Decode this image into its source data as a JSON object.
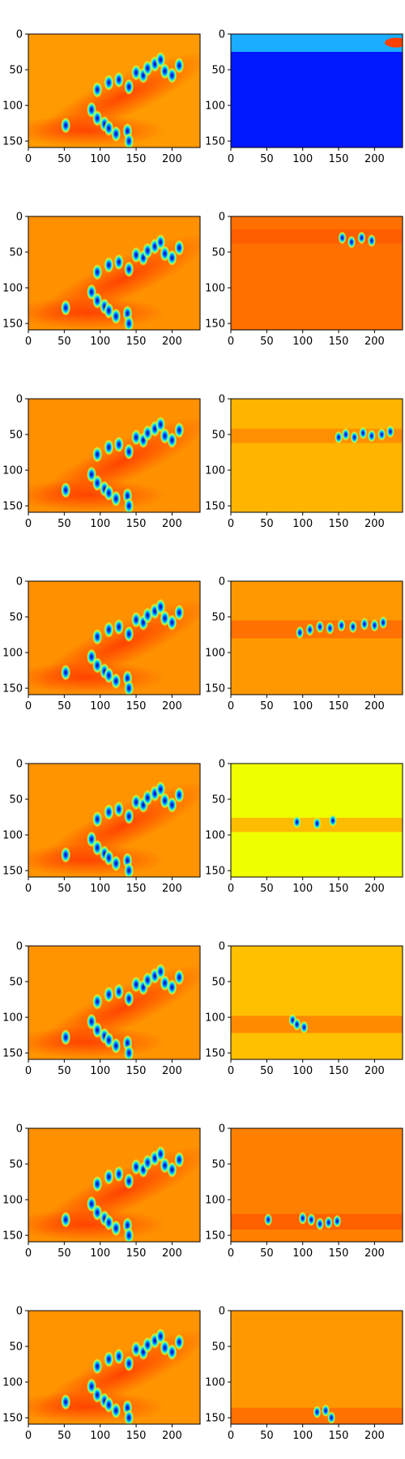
{
  "chart_data": {
    "type": "heatmap",
    "colormap": "jet",
    "layout": {
      "rows": 8,
      "cols": 2
    },
    "x_ticks": [
      0,
      50,
      100,
      150,
      200
    ],
    "y_ticks": [
      0,
      50,
      100,
      150
    ],
    "xlim": [
      0,
      239
    ],
    "ylim": [
      159,
      0
    ],
    "grid": false,
    "legend": "none",
    "left_column_blobs": [
      {
        "x": 52,
        "y": 128
      },
      {
        "x": 88,
        "y": 106
      },
      {
        "x": 96,
        "y": 118
      },
      {
        "x": 106,
        "y": 126
      },
      {
        "x": 112,
        "y": 132
      },
      {
        "x": 122,
        "y": 140
      },
      {
        "x": 138,
        "y": 136
      },
      {
        "x": 140,
        "y": 150
      },
      {
        "x": 96,
        "y": 78
      },
      {
        "x": 112,
        "y": 68
      },
      {
        "x": 126,
        "y": 64
      },
      {
        "x": 140,
        "y": 74
      },
      {
        "x": 150,
        "y": 54
      },
      {
        "x": 160,
        "y": 58
      },
      {
        "x": 166,
        "y": 48
      },
      {
        "x": 176,
        "y": 42
      },
      {
        "x": 184,
        "y": 36
      },
      {
        "x": 190,
        "y": 52
      },
      {
        "x": 200,
        "y": 58
      },
      {
        "x": 210,
        "y": 44
      }
    ],
    "panels": [
      {
        "left": {
          "bg": "#ff9a00"
        },
        "right": {
          "bg": "#0018ff",
          "band": {
            "y0": 0,
            "y1": 25,
            "color": "#20c8ff"
          },
          "hot": [
            {
              "x": 230,
              "y": 12,
              "color": "#ff4000"
            }
          ],
          "blobs": []
        }
      },
      {
        "left": {
          "bg": "#ff9000"
        },
        "right": {
          "bg": "#ff7000",
          "band": {
            "y0": 18,
            "y1": 38,
            "color": "#ff5a00"
          },
          "blobs": [
            {
              "x": 155,
              "y": 30
            },
            {
              "x": 168,
              "y": 36
            },
            {
              "x": 182,
              "y": 30
            },
            {
              "x": 196,
              "y": 34
            }
          ]
        }
      },
      {
        "left": {
          "bg": "#ff9000"
        },
        "right": {
          "bg": "#ffb400",
          "band": {
            "y0": 42,
            "y1": 62,
            "color": "#ff8800"
          },
          "blobs": [
            {
              "x": 150,
              "y": 54
            },
            {
              "x": 160,
              "y": 50
            },
            {
              "x": 172,
              "y": 54
            },
            {
              "x": 184,
              "y": 48
            },
            {
              "x": 196,
              "y": 52
            },
            {
              "x": 210,
              "y": 50
            },
            {
              "x": 222,
              "y": 46
            }
          ]
        }
      },
      {
        "left": {
          "bg": "#ff9000"
        },
        "right": {
          "bg": "#ff9800",
          "band": {
            "y0": 55,
            "y1": 80,
            "color": "#ff6a00"
          },
          "blobs": [
            {
              "x": 96,
              "y": 72
            },
            {
              "x": 110,
              "y": 68
            },
            {
              "x": 124,
              "y": 64
            },
            {
              "x": 138,
              "y": 66
            },
            {
              "x": 154,
              "y": 62
            },
            {
              "x": 170,
              "y": 64
            },
            {
              "x": 186,
              "y": 60
            },
            {
              "x": 200,
              "y": 62
            },
            {
              "x": 212,
              "y": 58
            }
          ]
        }
      },
      {
        "left": {
          "bg": "#ff9400"
        },
        "right": {
          "bg": "#f0ff00",
          "band": {
            "y0": 76,
            "y1": 96,
            "color": "#ffb000"
          },
          "blobs": [
            {
              "x": 92,
              "y": 82
            },
            {
              "x": 120,
              "y": 84
            },
            {
              "x": 142,
              "y": 80
            }
          ]
        }
      },
      {
        "left": {
          "bg": "#ff9400"
        },
        "right": {
          "bg": "#ffc000",
          "band": {
            "y0": 98,
            "y1": 122,
            "color": "#ff8000"
          },
          "blobs": [
            {
              "x": 86,
              "y": 104
            },
            {
              "x": 92,
              "y": 110
            },
            {
              "x": 102,
              "y": 114
            }
          ]
        }
      },
      {
        "left": {
          "bg": "#ff9000"
        },
        "right": {
          "bg": "#ff8000",
          "band": {
            "y0": 120,
            "y1": 142,
            "color": "#ff5a00"
          },
          "blobs": [
            {
              "x": 52,
              "y": 128
            },
            {
              "x": 100,
              "y": 126
            },
            {
              "x": 112,
              "y": 128
            },
            {
              "x": 124,
              "y": 134
            },
            {
              "x": 136,
              "y": 132
            },
            {
              "x": 148,
              "y": 130
            }
          ]
        }
      },
      {
        "left": {
          "bg": "#ff9400"
        },
        "right": {
          "bg": "#ff9800",
          "band": {
            "y0": 136,
            "y1": 159,
            "color": "#ff6a00"
          },
          "blobs": [
            {
              "x": 120,
              "y": 142
            },
            {
              "x": 132,
              "y": 140
            },
            {
              "x": 140,
              "y": 150
            }
          ]
        }
      }
    ]
  }
}
